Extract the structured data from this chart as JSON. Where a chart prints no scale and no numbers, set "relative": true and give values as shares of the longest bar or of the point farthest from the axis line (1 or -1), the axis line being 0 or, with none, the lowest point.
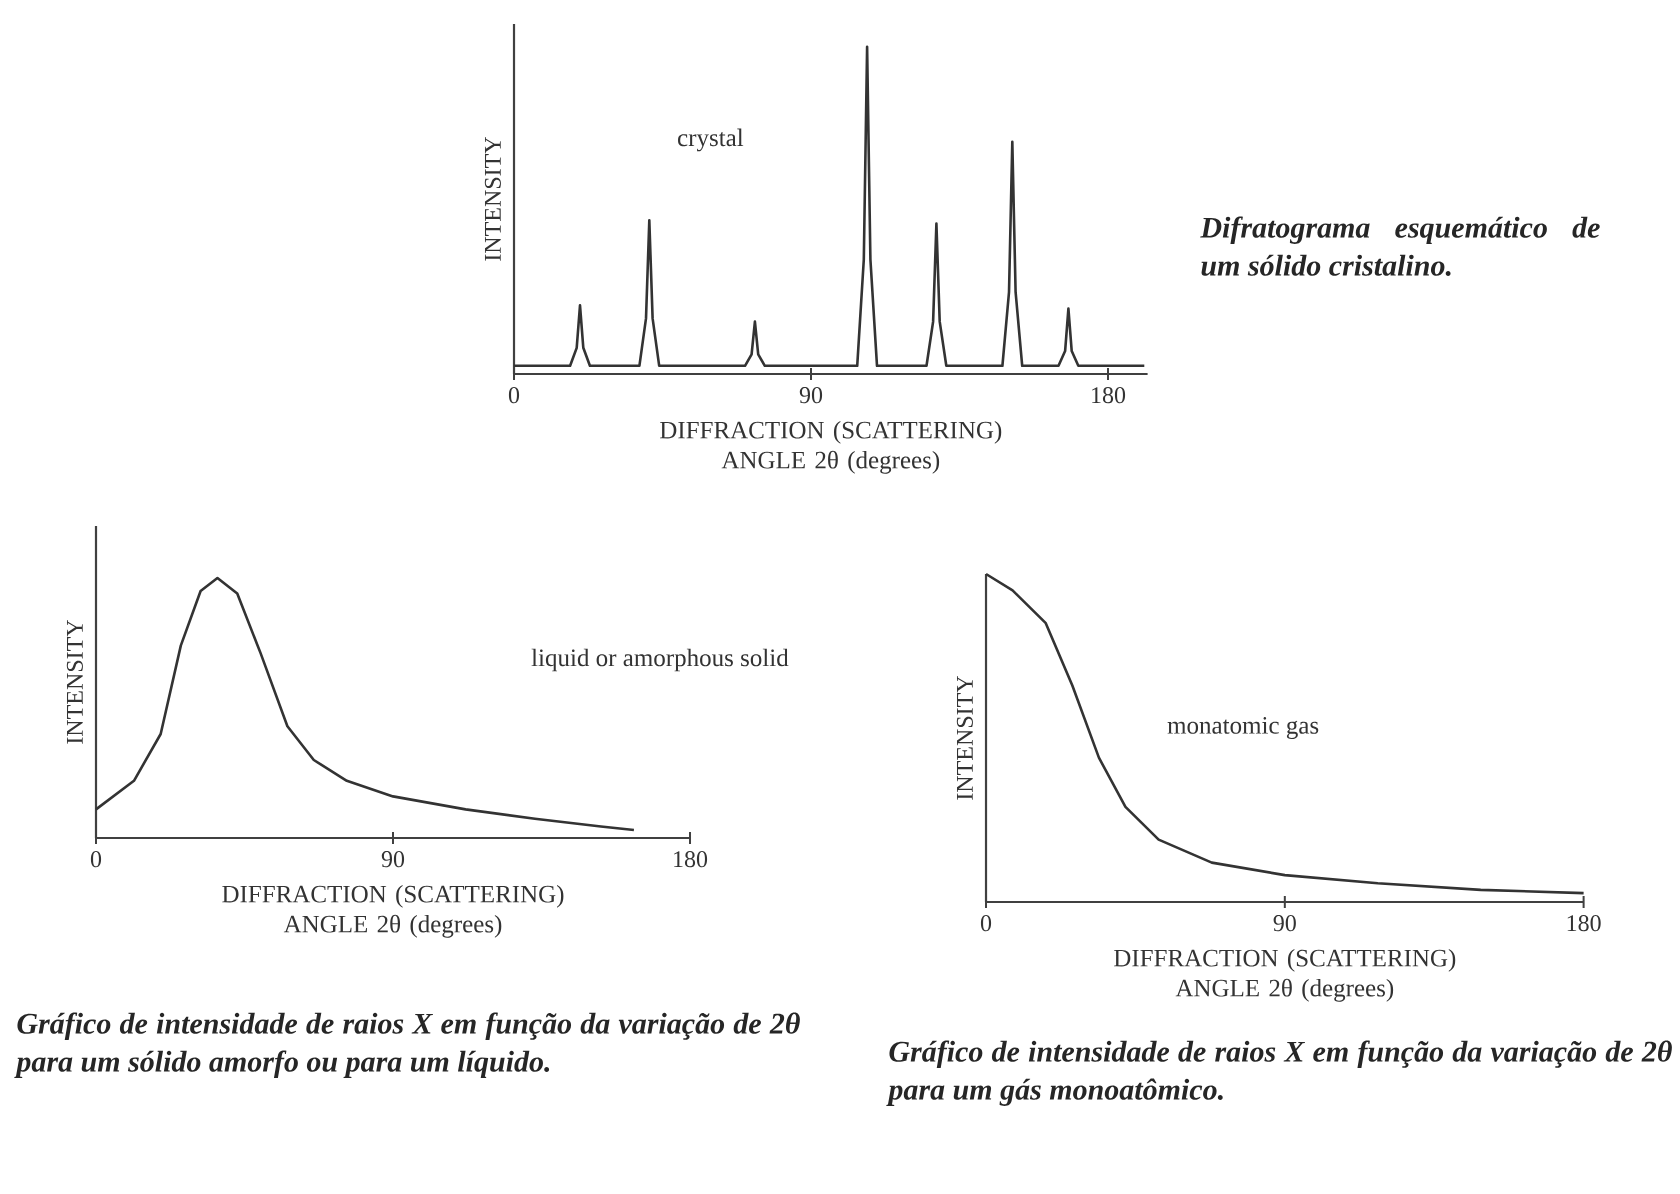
{
  "chart_data": [
    {
      "type": "line",
      "relative": true,
      "ylabel": "INTENSITY",
      "xlabel": "DIFFRACTION (SCATTERING) ANGLE 2θ  (degrees)",
      "x": [
        0,
        17,
        19,
        20,
        21,
        23,
        38,
        40,
        41,
        42,
        44,
        70,
        72,
        73,
        74,
        76,
        104,
        106,
        107,
        108,
        110,
        125,
        127,
        128,
        129,
        131,
        148,
        150,
        151,
        152,
        154,
        165,
        167,
        168,
        169,
        171,
        191
      ],
      "xlim": [
        0,
        192
      ],
      "xticks": [
        0,
        90,
        180
      ],
      "series": [
        {
          "color": "#333333",
          "values": [
            0.025,
            0.025,
            0.08,
            0.21,
            0.08,
            0.025,
            0.025,
            0.17,
            0.47,
            0.17,
            0.025,
            0.025,
            0.06,
            0.16,
            0.06,
            0.025,
            0.025,
            0.35,
            1.0,
            0.35,
            0.025,
            0.025,
            0.16,
            0.46,
            0.16,
            0.025,
            0.025,
            0.25,
            0.71,
            0.25,
            0.025,
            0.025,
            0.07,
            0.2,
            0.07,
            0.025,
            0.025
          ]
        }
      ],
      "annotations": [
        "crystal",
        "Difratograma esquemático de um sólido cristalino."
      ]
    },
    {
      "type": "line",
      "relative": true,
      "ylabel": "INTENSITY",
      "xlabel": "DIFFRACTION (SCATTERING) ANGLE 2θ  (degrees)",
      "x": [
        0,
        11.5,
        19.6,
        25.7,
        31.7,
        36.8,
        42.8,
        49.9,
        58,
        66,
        76,
        90,
        112,
        133,
        153,
        163
      ],
      "xlim": [
        0,
        180
      ],
      "xticks": [
        0,
        90,
        180
      ],
      "series": [
        {
          "color": "#333333",
          "values": [
            0.11,
            0.22,
            0.4,
            0.74,
            0.95,
            1.0,
            0.94,
            0.71,
            0.43,
            0.3,
            0.22,
            0.16,
            0.11,
            0.074,
            0.044,
            0.031
          ]
        }
      ],
      "annotations": [
        "liquid or amorphous solid",
        "Gráfico de intensidade de raios X em função da variação de 2θ  para um sólido amorfo ou para um líquido."
      ]
    },
    {
      "type": "line",
      "relative": true,
      "ylabel": "INTENSITY",
      "xlabel": "DIFFRACTION (SCATTERING) ANGLE 2θ  (degrees)",
      "x": [
        0,
        8,
        18,
        26,
        34,
        42,
        52,
        68,
        90,
        118,
        149,
        180
      ],
      "xlim": [
        0,
        180
      ],
      "xticks": [
        0,
        90,
        180
      ],
      "series": [
        {
          "color": "#333333",
          "values": [
            1.0,
            0.95,
            0.85,
            0.66,
            0.44,
            0.29,
            0.19,
            0.12,
            0.082,
            0.057,
            0.037,
            0.027
          ]
        }
      ],
      "annotations": [
        "monatomic gas",
        "Gráfico de intensidade de raios X em função da variação de 2θ  para um gás monoatômico."
      ]
    }
  ]
}
